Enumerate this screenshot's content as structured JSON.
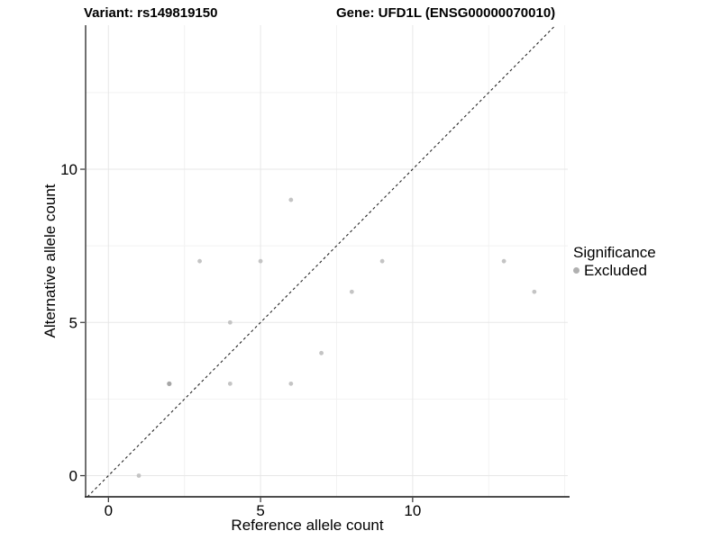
{
  "chart_data": {
    "type": "scatter",
    "title_variant": "Variant: rs149819150",
    "title_gene": "Gene: UFD1L (ENSG00000070010)",
    "xlabel": "Reference allele count",
    "ylabel": "Alternative allele count",
    "xlim": [
      -0.75,
      15.1
    ],
    "ylim": [
      -0.69,
      14.7
    ],
    "x_major_ticks": [
      0,
      5,
      10
    ],
    "y_major_ticks": [
      0,
      5,
      10
    ],
    "x_minor_gridlines": [
      2.5,
      7.5,
      12.5,
      15
    ],
    "y_minor_gridlines": [
      2.5,
      7.5,
      12.5
    ],
    "grid": true,
    "identity_line": {
      "style": "dashed",
      "equation": "y = x"
    },
    "series": [
      {
        "name": "Excluded",
        "points": [
          [
            1,
            0
          ],
          [
            2,
            3
          ],
          [
            3,
            7
          ],
          [
            4,
            3
          ],
          [
            4,
            5
          ],
          [
            5,
            7
          ],
          [
            6,
            3
          ],
          [
            6,
            9
          ],
          [
            7,
            4
          ],
          [
            8,
            6
          ],
          [
            9,
            7
          ],
          [
            13,
            7
          ],
          [
            14,
            6
          ]
        ]
      }
    ],
    "overplotted_points": [
      [
        2,
        3
      ]
    ],
    "legend": {
      "title": "Significance",
      "position": "right",
      "items": [
        {
          "label": "Excluded",
          "color": "#b0b0b0"
        }
      ]
    },
    "colors": {
      "point": "#c4c4c4",
      "point_overplotted": "#a6a6a6",
      "major_grid": "#e7e7e7",
      "minor_grid": "#f2f2f2",
      "axis": "#333333",
      "identity_line": "#262626",
      "text": "#000000"
    }
  }
}
